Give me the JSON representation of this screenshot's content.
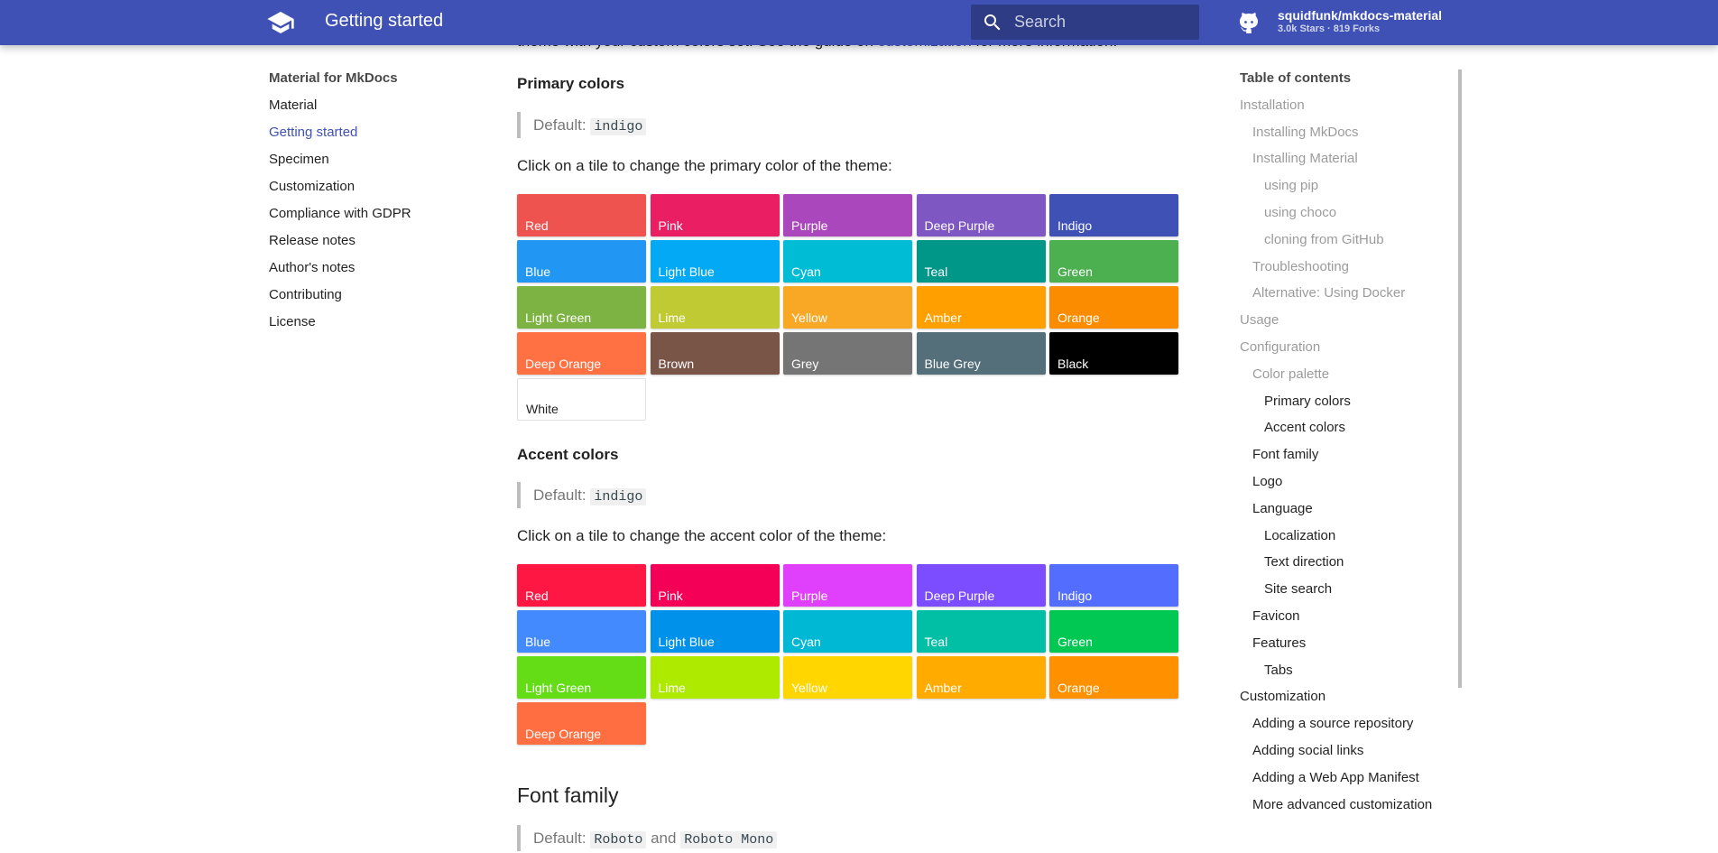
{
  "header": {
    "title": "Getting started",
    "logo_icon": "school-icon",
    "search_placeholder": "Search",
    "repo_name": "squidfunk/mkdocs-material",
    "repo_stats": "3.0k Stars · 819 Forks",
    "accent": "#3f51b5"
  },
  "nav": {
    "title": "Material for MkDocs",
    "items": [
      {
        "label": "Material"
      },
      {
        "label": "Getting started"
      },
      {
        "label": "Specimen"
      },
      {
        "label": "Customization"
      },
      {
        "label": "Compliance with GDPR"
      },
      {
        "label": "Release notes"
      },
      {
        "label": "Author's notes"
      },
      {
        "label": "Contributing"
      },
      {
        "label": "License"
      }
    ]
  },
  "content": {
    "cut_prefix": "theme with your custom colors set. See the guide on ",
    "cut_link": "customization",
    "cut_suffix": " for more information.",
    "primary": {
      "heading": "Primary colors",
      "default_label": "Default:",
      "default_value": "indigo",
      "instruction": "Click on a tile to change the primary color of the theme:",
      "tiles": [
        {
          "label": "Red",
          "color": "#ef5350"
        },
        {
          "label": "Pink",
          "color": "#e91e63"
        },
        {
          "label": "Purple",
          "color": "#ab47bc"
        },
        {
          "label": "Deep Purple",
          "color": "#7e57c2"
        },
        {
          "label": "Indigo",
          "color": "#3f51b5"
        },
        {
          "label": "Blue",
          "color": "#2196f3"
        },
        {
          "label": "Light Blue",
          "color": "#03a9f4"
        },
        {
          "label": "Cyan",
          "color": "#00bcd4"
        },
        {
          "label": "Teal",
          "color": "#009688"
        },
        {
          "label": "Green",
          "color": "#4caf50"
        },
        {
          "label": "Light Green",
          "color": "#7cb342"
        },
        {
          "label": "Lime",
          "color": "#c0ca33"
        },
        {
          "label": "Yellow",
          "color": "#f9a825"
        },
        {
          "label": "Amber",
          "color": "#ffa000"
        },
        {
          "label": "Orange",
          "color": "#fb8c00"
        },
        {
          "label": "Deep Orange",
          "color": "#ff7043"
        },
        {
          "label": "Brown",
          "color": "#795548"
        },
        {
          "label": "Grey",
          "color": "#757575"
        },
        {
          "label": "Blue Grey",
          "color": "#546e7a"
        },
        {
          "label": "Black",
          "color": "#000000"
        },
        {
          "label": "White",
          "color": "#ffffff"
        }
      ]
    },
    "accent": {
      "heading": "Accent colors",
      "default_label": "Default:",
      "default_value": "indigo",
      "instruction": "Click on a tile to change the accent color of the theme:",
      "tiles": [
        {
          "label": "Red",
          "color": "#ff1744"
        },
        {
          "label": "Pink",
          "color": "#f50057"
        },
        {
          "label": "Purple",
          "color": "#e040fb"
        },
        {
          "label": "Deep Purple",
          "color": "#7c4dff"
        },
        {
          "label": "Indigo",
          "color": "#536dfe"
        },
        {
          "label": "Blue",
          "color": "#448aff"
        },
        {
          "label": "Light Blue",
          "color": "#0091ea"
        },
        {
          "label": "Cyan",
          "color": "#00b8d4"
        },
        {
          "label": "Teal",
          "color": "#00bfa5"
        },
        {
          "label": "Green",
          "color": "#00c853"
        },
        {
          "label": "Light Green",
          "color": "#64dd17"
        },
        {
          "label": "Lime",
          "color": "#aeea00"
        },
        {
          "label": "Yellow",
          "color": "#ffd600"
        },
        {
          "label": "Amber",
          "color": "#ffab00"
        },
        {
          "label": "Orange",
          "color": "#ff9100"
        },
        {
          "label": "Deep Orange",
          "color": "#ff6e40"
        }
      ]
    },
    "font": {
      "heading": "Font family",
      "default_label": "Default:",
      "value1": "Roboto",
      "and": "and",
      "value2": "Roboto Mono"
    }
  },
  "toc": {
    "title": "Table of contents",
    "items": [
      {
        "label": "Installation",
        "level": 1,
        "state": "read"
      },
      {
        "label": "Installing MkDocs",
        "level": 2,
        "state": "read"
      },
      {
        "label": "Installing Material",
        "level": 2,
        "state": "read"
      },
      {
        "label": "using pip",
        "level": 3,
        "state": "read"
      },
      {
        "label": "using choco",
        "level": 3,
        "state": "read"
      },
      {
        "label": "cloning from GitHub",
        "level": 3,
        "state": "read"
      },
      {
        "label": "Troubleshooting",
        "level": 2,
        "state": "read"
      },
      {
        "label": "Alternative: Using Docker",
        "level": 2,
        "state": "read"
      },
      {
        "label": "Usage",
        "level": 1,
        "state": "read"
      },
      {
        "label": "Configuration",
        "level": 1,
        "state": "read"
      },
      {
        "label": "Color palette",
        "level": 2,
        "state": "read"
      },
      {
        "label": "Primary colors",
        "level": 3,
        "state": "unread"
      },
      {
        "label": "Accent colors",
        "level": 3,
        "state": "unread"
      },
      {
        "label": "Font family",
        "level": 2,
        "state": "unread"
      },
      {
        "label": "Logo",
        "level": 2,
        "state": "unread"
      },
      {
        "label": "Language",
        "level": 2,
        "state": "unread"
      },
      {
        "label": "Localization",
        "level": 3,
        "state": "unread"
      },
      {
        "label": "Text direction",
        "level": 3,
        "state": "unread"
      },
      {
        "label": "Site search",
        "level": 3,
        "state": "unread"
      },
      {
        "label": "Favicon",
        "level": 2,
        "state": "unread"
      },
      {
        "label": "Features",
        "level": 2,
        "state": "unread"
      },
      {
        "label": "Tabs",
        "level": 3,
        "state": "unread"
      },
      {
        "label": "Customization",
        "level": 1,
        "state": "unread"
      },
      {
        "label": "Adding a source repository",
        "level": 2,
        "state": "unread"
      },
      {
        "label": "Adding social links",
        "level": 2,
        "state": "unread"
      },
      {
        "label": "Adding a Web App Manifest",
        "level": 2,
        "state": "unread"
      },
      {
        "label": "More advanced customization",
        "level": 2,
        "state": "unread"
      }
    ]
  }
}
